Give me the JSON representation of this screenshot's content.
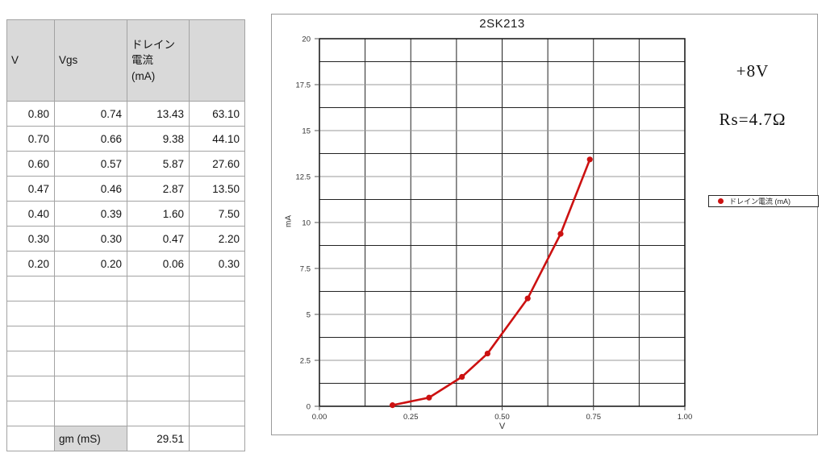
{
  "table": {
    "headers": [
      "V",
      "Vgs",
      "ドレイン\n電流\n(mA)",
      ""
    ],
    "rows": [
      [
        "0.80",
        "0.74",
        "13.43",
        "63.10"
      ],
      [
        "0.70",
        "0.66",
        "9.38",
        "44.10"
      ],
      [
        "0.60",
        "0.57",
        "5.87",
        "27.60"
      ],
      [
        "0.47",
        "0.46",
        "2.87",
        "13.50"
      ],
      [
        "0.40",
        "0.39",
        "1.60",
        "7.50"
      ],
      [
        "0.30",
        "0.30",
        "0.47",
        "2.20"
      ],
      [
        "0.20",
        "0.20",
        "0.06",
        "0.30"
      ],
      [
        "",
        "",
        "",
        ""
      ],
      [
        "",
        "",
        "",
        ""
      ],
      [
        "",
        "",
        "",
        ""
      ],
      [
        "",
        "",
        "",
        ""
      ],
      [
        "",
        "",
        "",
        ""
      ],
      [
        "",
        "",
        "",
        ""
      ]
    ],
    "gm_row": {
      "label": "gm (mS)",
      "value": "29.51"
    },
    "header_bg": "#d9d9d9",
    "border_color": "#a3a3a3"
  },
  "chart_data": {
    "type": "line",
    "title": "2SK213",
    "xlabel": "V",
    "ylabel": "mA",
    "xlim": [
      0,
      1
    ],
    "ylim": [
      0,
      20
    ],
    "x_ticks": [
      0,
      0.25,
      0.5,
      0.75,
      1
    ],
    "x_tick_labels": [
      "0.00",
      "0.25",
      "0.50",
      "0.75",
      "1.00"
    ],
    "y_ticks": [
      0,
      2.5,
      5,
      7.5,
      10,
      12.5,
      15,
      17.5,
      20
    ],
    "y_tick_labels": [
      "0",
      "2.5",
      "5",
      "7.5",
      "10",
      "12.5",
      "15",
      "17.5",
      "20"
    ],
    "x_minor_step": 0.125,
    "y_minor_step": 1.25,
    "x_major_step": 0.25,
    "y_major_step": 2.5,
    "grid": true,
    "legend_position": "right",
    "series": [
      {
        "name": "ドレイン電流 (mA)",
        "color": "#cc1111",
        "x": [
          0.2,
          0.3,
          0.39,
          0.46,
          0.57,
          0.66,
          0.74
        ],
        "y": [
          0.06,
          0.47,
          1.6,
          2.87,
          5.87,
          9.38,
          13.43
        ]
      }
    ],
    "annotations": [
      {
        "text": "+8V"
      },
      {
        "text": "Rs=4.7Ω"
      }
    ],
    "colors": {
      "grid_minor": "#222222",
      "grid_major": "#999999",
      "axis": "#111111"
    }
  }
}
